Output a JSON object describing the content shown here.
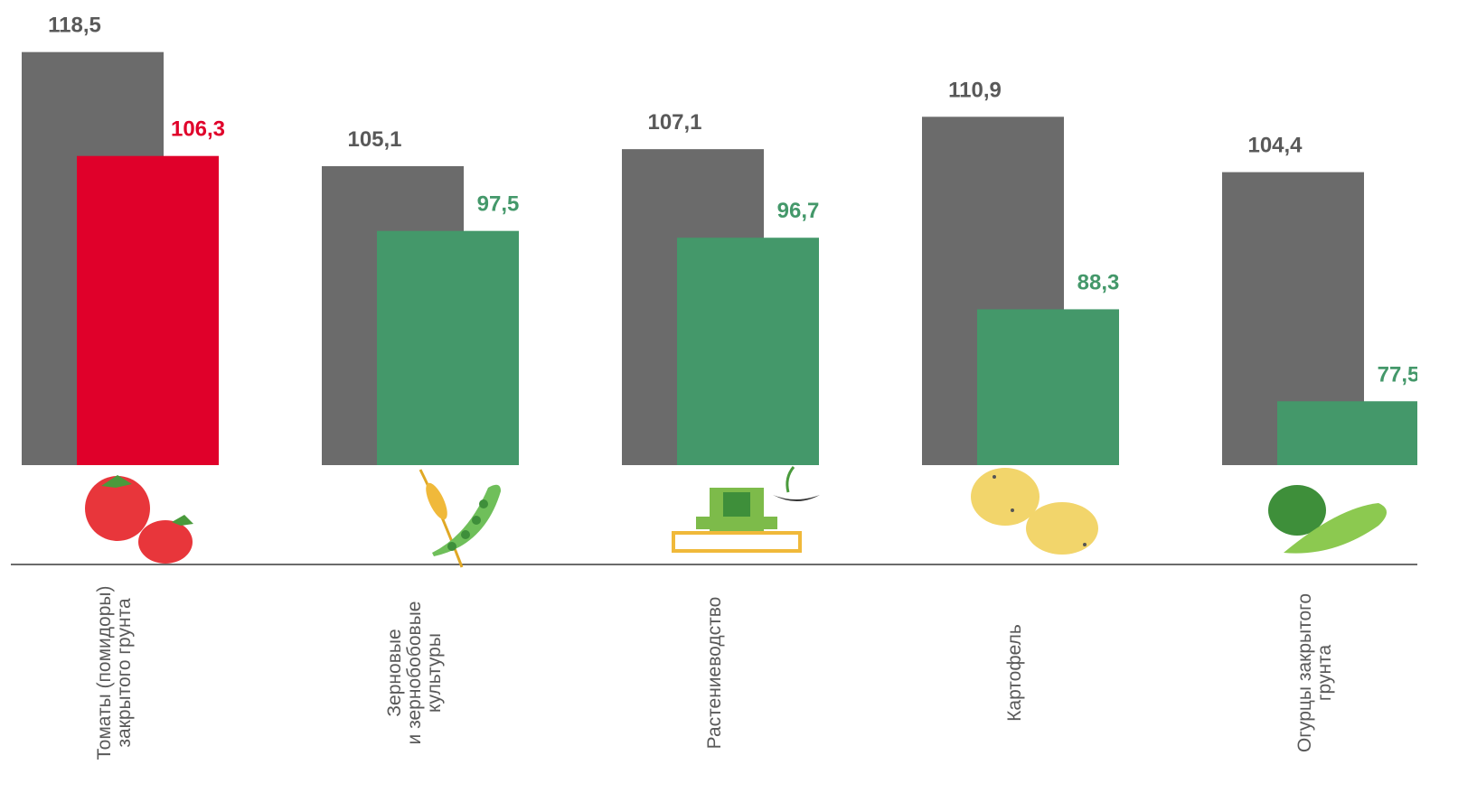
{
  "chart_data": {
    "type": "bar",
    "categories": [
      "Томаты (помидоры)\nзакрытого   грунта",
      "Зерновые\nи зернобобовые\nкультуры",
      "Растениеводство",
      "Картофель",
      "Огурцы  закрытого\nгрунта"
    ],
    "series": [
      {
        "color": "#6b6b6b",
        "values": [
          118.5,
          105.1,
          107.1,
          110.9,
          104.4
        ],
        "value_labels": [
          "118,5",
          "105,1",
          "107,1",
          "110,9",
          "104,4"
        ]
      },
      {
        "color": "#44986a",
        "colors": [
          "#e0002a",
          "#44986a",
          "#44986a",
          "#44986a",
          "#44986a"
        ],
        "values": [
          106.3,
          97.5,
          96.7,
          88.3,
          77.5
        ],
        "value_labels": [
          "106,3",
          "97,5",
          "96,7",
          "88,3",
          "77,5"
        ]
      }
    ],
    "ylim": [
      70,
      120
    ]
  }
}
